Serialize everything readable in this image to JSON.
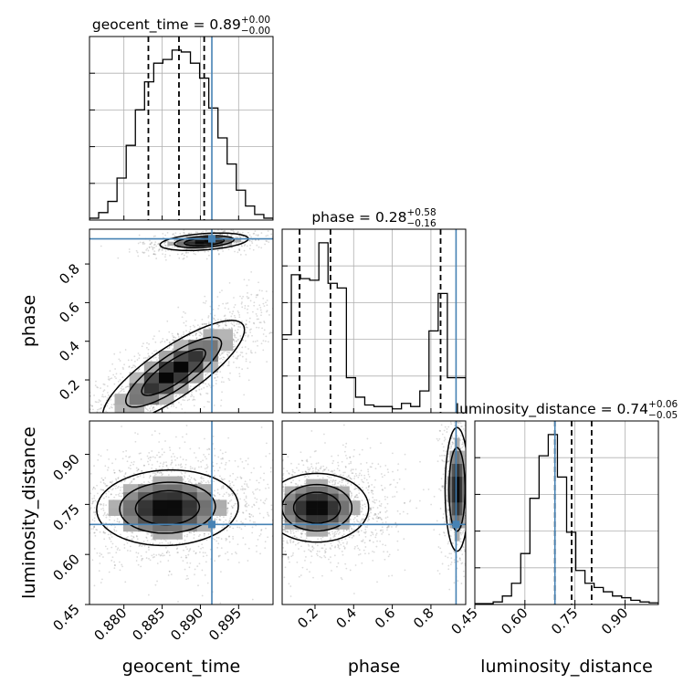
{
  "chart_data": {
    "type": "corner",
    "parameters": [
      "geocent_time",
      "phase",
      "luminosity_distance"
    ],
    "truths": [
      0.8915,
      0.93,
      0.69
    ],
    "truth_color": "#4682b4",
    "titles": [
      {
        "name": "geocent_time",
        "median": "0.89",
        "plus": "+0.00",
        "minus": "−0.00"
      },
      {
        "name": "phase",
        "median": "0.28",
        "plus": "+0.58",
        "minus": "−0.16"
      },
      {
        "name": "luminosity_distance",
        "median": "0.74",
        "plus": "+0.06",
        "minus": "−0.05"
      }
    ],
    "axes": {
      "geocent_time": {
        "range": [
          0.8755,
          0.8995
        ],
        "ticks": [
          "0.880",
          "0.885",
          "0.890",
          "0.895"
        ],
        "label": "geocent_time"
      },
      "phase": {
        "range": [
          0.03,
          0.98
        ],
        "ticks": [
          "0.2",
          "0.4",
          "0.6",
          "0.8"
        ],
        "label": "phase"
      },
      "luminosity_distance": {
        "range": [
          0.45,
          1.0
        ],
        "ticks": [
          "0.45",
          "0.60",
          "0.75",
          "0.90"
        ],
        "label": "luminosity_distance"
      }
    },
    "histograms": [
      {
        "param": "geocent_time",
        "x_start": 0.8755,
        "bin_width": 0.0012,
        "counts": [
          2,
          8,
          20,
          45,
          80,
          118,
          148,
          168,
          172,
          182,
          180,
          168,
          152,
          120,
          88,
          60,
          32,
          15,
          6,
          2
        ],
        "quantiles": [
          0.8832,
          0.8872,
          0.8905
        ]
      },
      {
        "param": "phase",
        "x_start": 0.03,
        "bin_width": 0.0475,
        "counts": [
          100,
          177,
          172,
          170,
          218,
          166,
          160,
          45,
          20,
          10,
          8,
          8,
          5,
          12,
          8,
          28,
          105,
          153,
          45,
          45
        ],
        "quantiles": [
          0.12,
          0.28,
          0.85
        ]
      },
      {
        "param": "luminosity_distance",
        "x_start": 0.45,
        "bin_width": 0.0275,
        "counts": [
          1,
          1,
          3,
          10,
          25,
          60,
          125,
          175,
          200,
          150,
          85,
          40,
          25,
          20,
          15,
          10,
          8,
          5,
          3,
          2
        ],
        "quantiles": [
          0.69,
          0.74,
          0.8
        ]
      }
    ],
    "contours": [
      {
        "x": "geocent_time",
        "y": "phase",
        "modes": [
          {
            "x": 0.8865,
            "y": 0.24,
            "sx": 0.0045,
            "sy": 0.13,
            "rho": 0.82,
            "levels": [
              0.88,
              0.62,
              0.35
            ]
          },
          {
            "x": 0.8905,
            "y": 0.915,
            "sx": 0.0028,
            "sy": 0.022,
            "rho": 0.35,
            "levels": [
              0.88,
              0.62,
              0.35
            ]
          }
        ]
      },
      {
        "x": "geocent_time",
        "y": "luminosity_distance",
        "modes": [
          {
            "x": 0.8857,
            "y": 0.74,
            "sx": 0.0045,
            "sy": 0.055,
            "rho": 0.05,
            "levels": [
              0.88,
              0.62,
              0.35
            ]
          }
        ]
      },
      {
        "x": "phase",
        "y": "luminosity_distance",
        "modes": [
          {
            "x": 0.21,
            "y": 0.74,
            "sx": 0.13,
            "sy": 0.05,
            "rho": 0.0,
            "levels": [
              0.88,
              0.62,
              0.35
            ]
          },
          {
            "x": 0.935,
            "y": 0.795,
            "sx": 0.03,
            "sy": 0.09,
            "rho": 0.0,
            "levels": [
              0.88,
              0.62
            ]
          }
        ]
      }
    ]
  }
}
